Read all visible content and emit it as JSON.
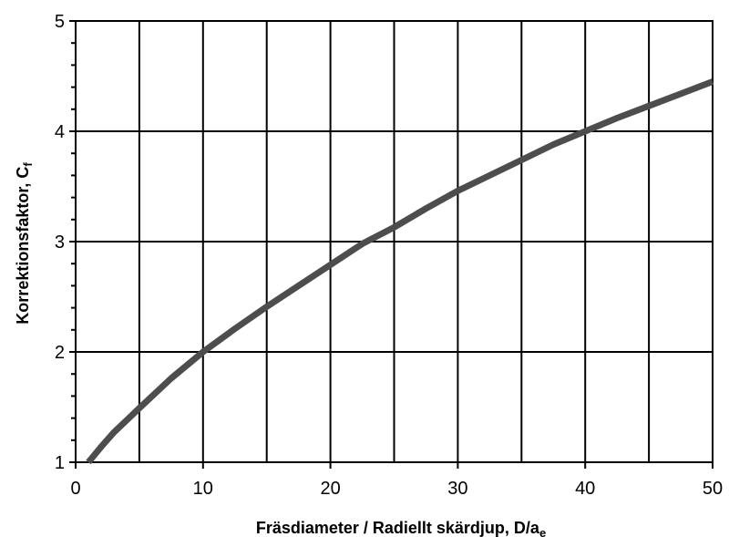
{
  "chart_data": {
    "type": "line",
    "xlabel": "Fräsdiameter / Radiellt skärdjup, D/a",
    "xlabel_subscript": "e",
    "ylabel": "Korrektionsfaktor, C",
    "ylabel_subscript": "f",
    "xlim": [
      0,
      50
    ],
    "ylim": [
      1,
      5
    ],
    "x_ticks": [
      "0",
      "10",
      "20",
      "30",
      "40",
      "50"
    ],
    "y_ticks": [
      "1",
      "2",
      "3",
      "4",
      "5"
    ],
    "grid": true,
    "legend": "none",
    "series_color": "#4d4d4d",
    "series": [
      {
        "x": [
          1.0,
          2,
          3,
          4,
          5,
          7.5,
          10,
          12.5,
          15,
          17.5,
          20,
          22.5,
          25,
          27.5,
          30,
          32.5,
          35,
          37.5,
          40,
          42.5,
          45,
          47.5,
          50
        ],
        "y": [
          1.0,
          1.14,
          1.27,
          1.38,
          1.49,
          1.76,
          2.0,
          2.21,
          2.41,
          2.6,
          2.79,
          2.98,
          3.13,
          3.3,
          3.46,
          3.6,
          3.74,
          3.88,
          4.0,
          4.12,
          4.23,
          4.34,
          4.45
        ]
      }
    ]
  }
}
